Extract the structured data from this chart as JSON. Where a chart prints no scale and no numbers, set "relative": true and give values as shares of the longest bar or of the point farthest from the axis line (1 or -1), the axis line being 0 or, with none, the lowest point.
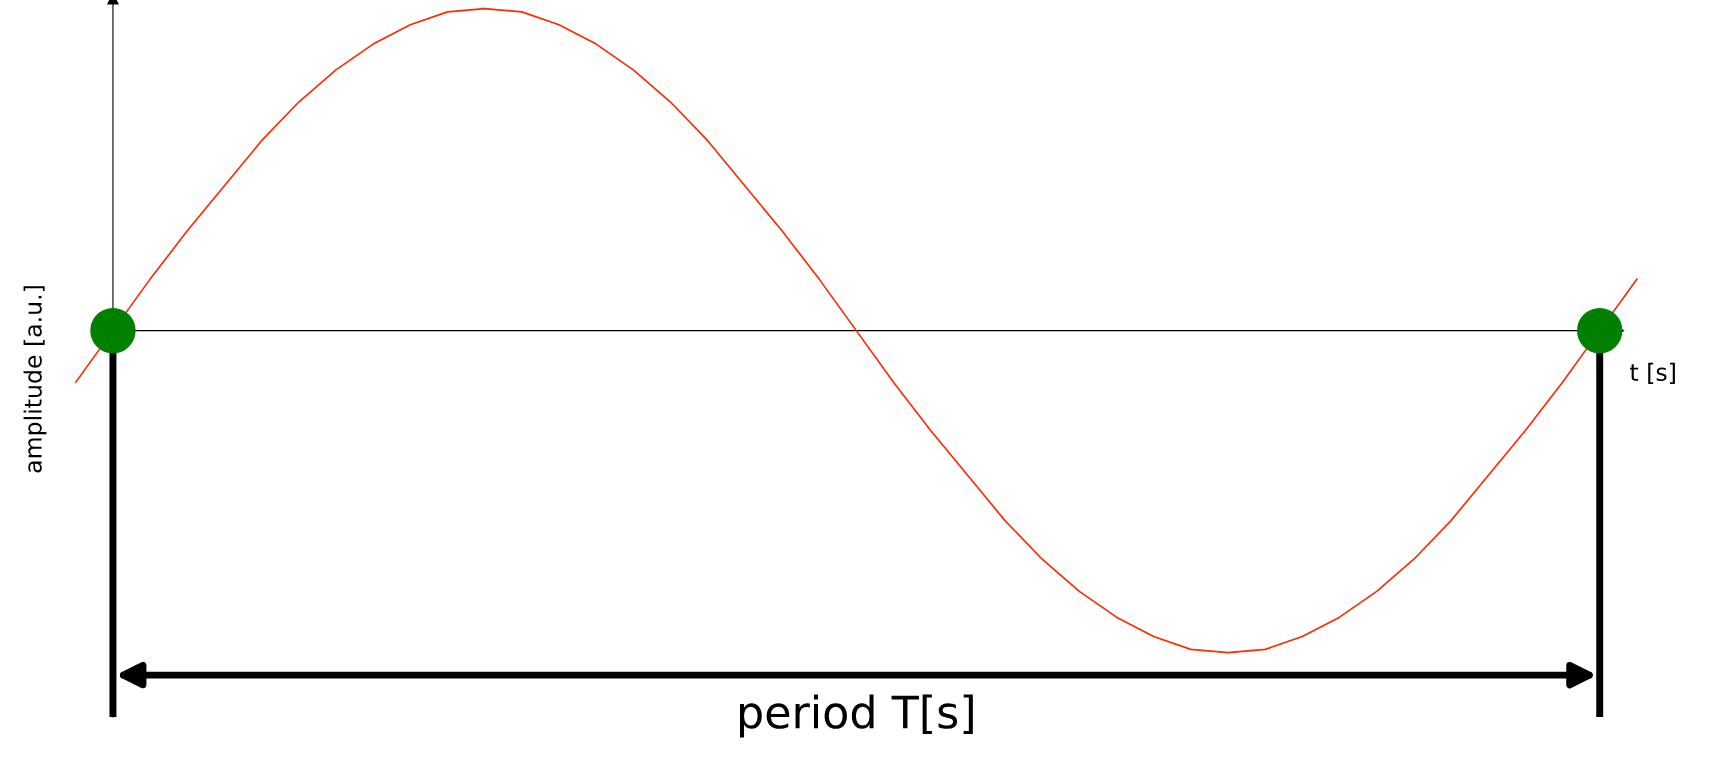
{
  "chart_data": {
    "type": "line",
    "relative": true,
    "xlabel": "t [s]",
    "ylabel": "amplitude [a.u.]",
    "categories": [
      null,
      null,
      null,
      null,
      null,
      null,
      null,
      null,
      null,
      null,
      null,
      null,
      null,
      null,
      null,
      null,
      null,
      null,
      null,
      null,
      null,
      null,
      null,
      null,
      null,
      null,
      null,
      null,
      null,
      null,
      null,
      null,
      null,
      null,
      null,
      null,
      null,
      null,
      null,
      null,
      null,
      null,
      null
    ],
    "grid": false,
    "legend": false,
    "marker": "none",
    "line_style": "solid",
    "series": [
      {
        "color": "#ff2a00",
        "values": [
          -0.16,
          0,
          0.16,
          0.31,
          0.45,
          0.59,
          0.71,
          0.81,
          0.89,
          0.95,
          0.99,
          1,
          0.99,
          0.95,
          0.89,
          0.81,
          0.71,
          0.59,
          0.45,
          0.31,
          0.16,
          0,
          -0.16,
          -0.31,
          -0.45,
          -0.59,
          -0.71,
          -0.81,
          -0.89,
          -0.95,
          -0.99,
          -1,
          -0.99,
          -0.95,
          -0.89,
          -0.81,
          -0.71,
          -0.59,
          -0.45,
          -0.31,
          -0.16,
          0,
          0.16
        ]
      }
    ],
    "annotations": [
      "period T[s]"
    ]
  }
}
